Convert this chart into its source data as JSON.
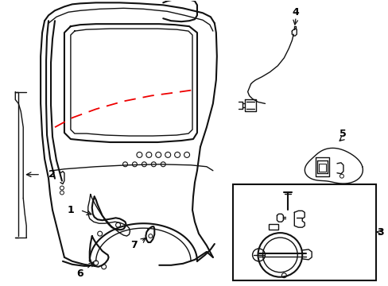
{
  "background_color": "#ffffff",
  "line_color": "#111111",
  "red_dash_color": "#ee0000",
  "label_color": "#000000",
  "box_color": "#000000",
  "figsize": [
    4.89,
    3.6
  ],
  "dpi": 100
}
